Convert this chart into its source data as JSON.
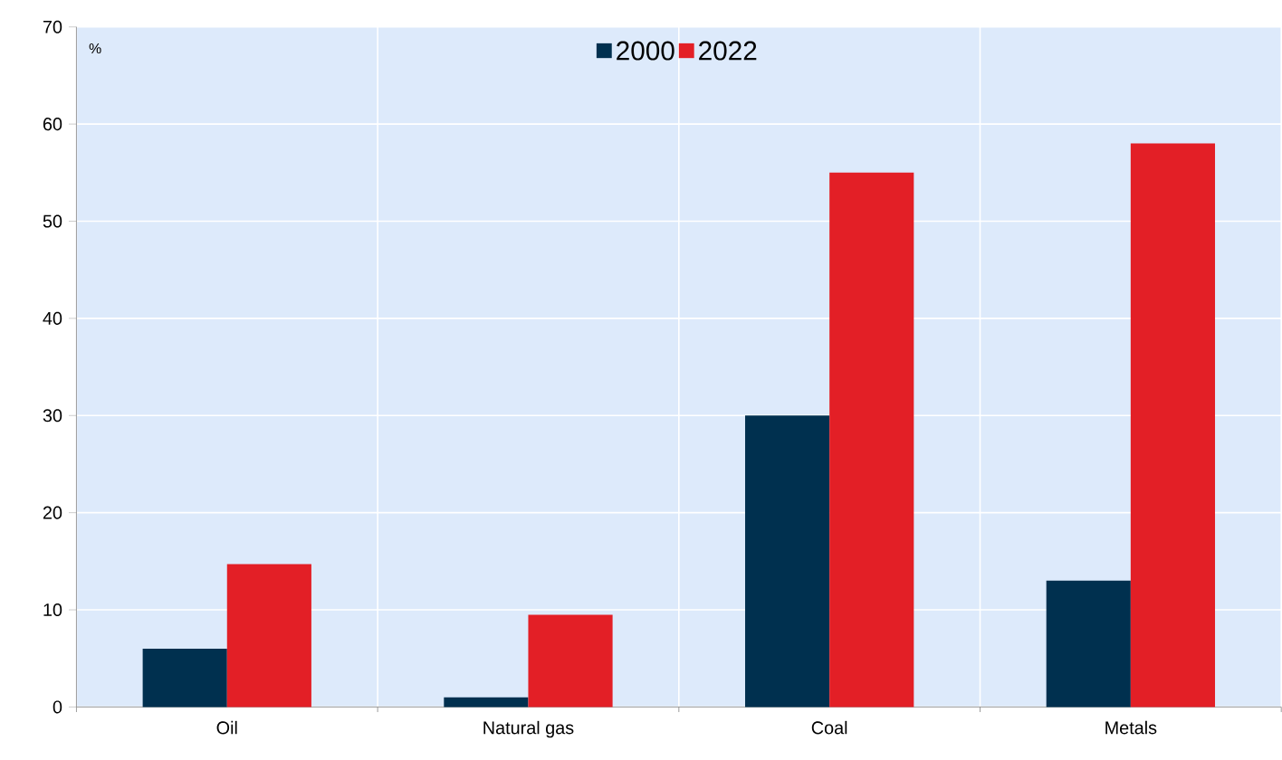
{
  "chart_data": {
    "type": "bar",
    "ylabel": "%",
    "categories": [
      "Oil",
      "Natural gas",
      "Coal",
      "Metals"
    ],
    "series": [
      {
        "name": "2000",
        "color": "#00304f",
        "values": [
          6,
          1,
          30,
          13
        ]
      },
      {
        "name": "2022",
        "color": "#e31f26",
        "values": [
          14.7,
          9.5,
          55,
          58
        ]
      }
    ],
    "ylim": [
      0,
      70
    ],
    "yticks": [
      0,
      10,
      20,
      30,
      40,
      50,
      60,
      70
    ],
    "grid": true,
    "legend": "top"
  }
}
